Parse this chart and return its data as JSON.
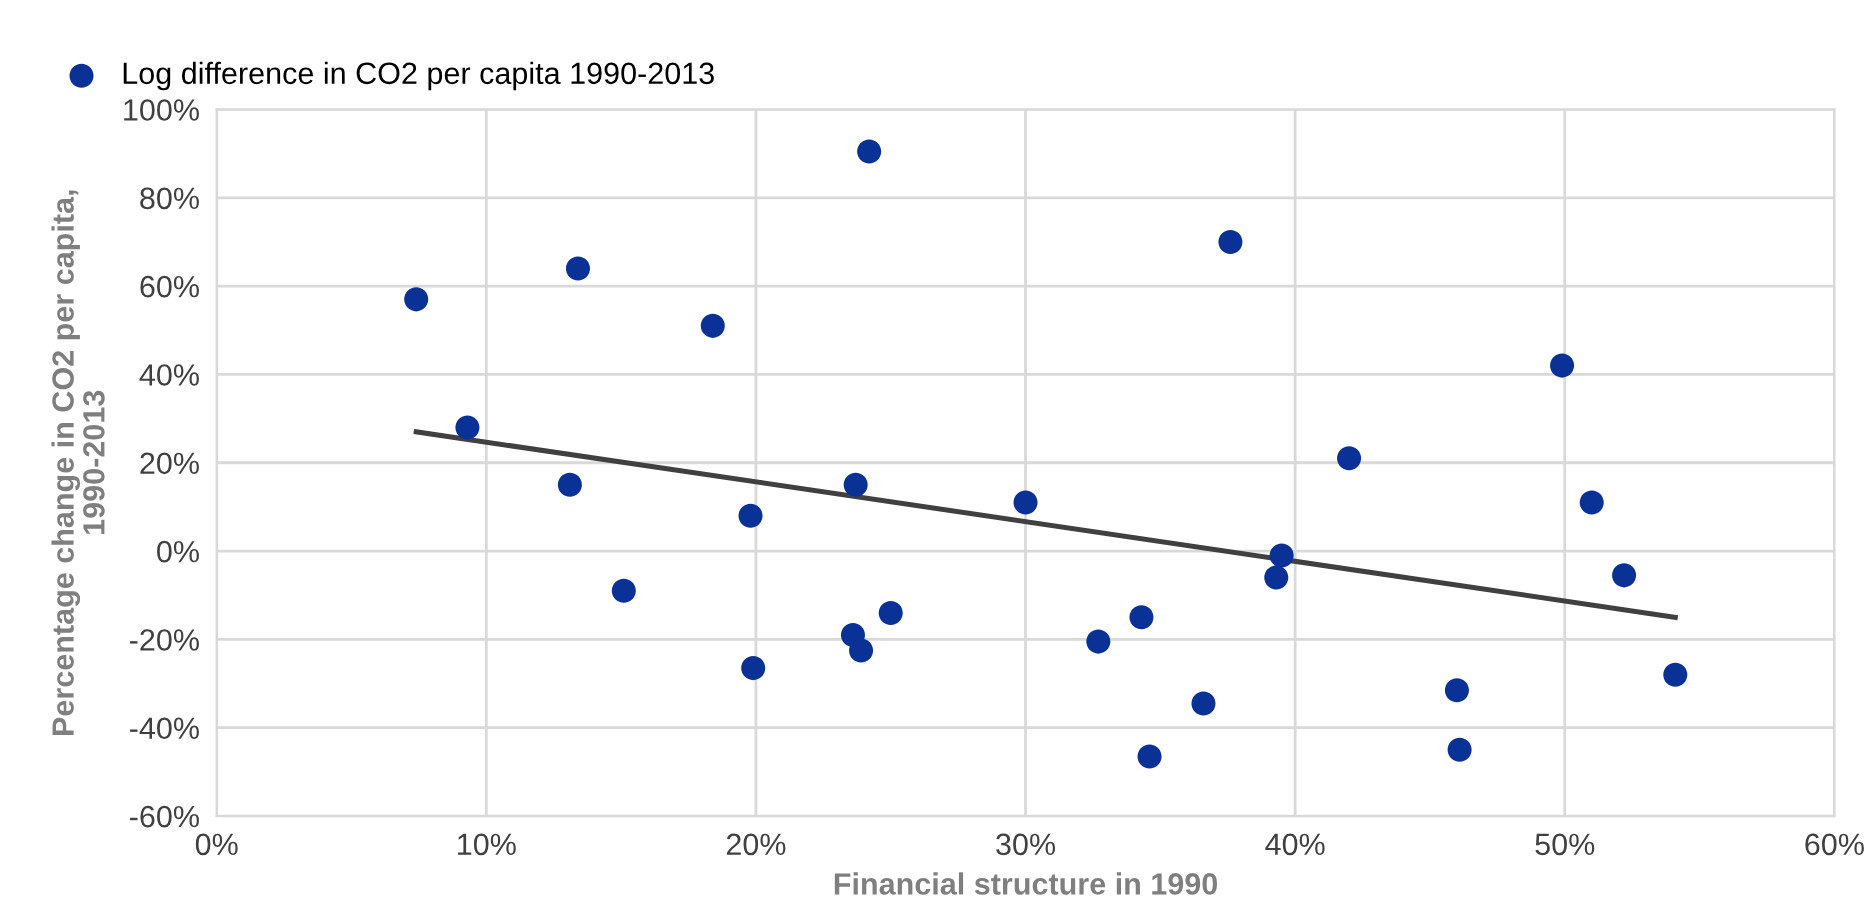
{
  "chart_data": {
    "type": "scatter",
    "xlabel": "Financial structure in 1990",
    "ylabel": "Percentage change in CO2 per capita,\n1990-2013",
    "xlim": [
      0,
      60
    ],
    "ylim": [
      -60,
      100
    ],
    "xticks": [
      {
        "value": 0,
        "label": "0%"
      },
      {
        "value": 10,
        "label": "10%"
      },
      {
        "value": 20,
        "label": "20%"
      },
      {
        "value": 30,
        "label": "30%"
      },
      {
        "value": 40,
        "label": "40%"
      },
      {
        "value": 50,
        "label": "50%"
      },
      {
        "value": 60,
        "label": "60%"
      }
    ],
    "yticks": [
      {
        "value": -60,
        "label": "-60%"
      },
      {
        "value": -40,
        "label": "-40%"
      },
      {
        "value": -20,
        "label": "-20%"
      },
      {
        "value": 0,
        "label": "0%"
      },
      {
        "value": 20,
        "label": "20%"
      },
      {
        "value": 40,
        "label": "40%"
      },
      {
        "value": 60,
        "label": "60%"
      },
      {
        "value": 80,
        "label": "80%"
      },
      {
        "value": 100,
        "label": "100%"
      }
    ],
    "grid": true,
    "legend": "top left",
    "series": [
      {
        "name": "Log difference in CO2 per capita 1990-2013",
        "marker": "circle",
        "color": "#0a3296",
        "x": [
          7.4,
          9.3,
          13.1,
          13.4,
          15.1,
          18.4,
          19.8,
          19.9,
          23.6,
          23.7,
          23.9,
          24.2,
          25.0,
          30.0,
          32.7,
          34.3,
          34.6,
          36.6,
          37.6,
          39.5,
          39.3,
          42.0,
          46.0,
          46.1,
          49.9,
          51.0,
          52.2,
          54.1
        ],
        "values": [
          57,
          28,
          15,
          64,
          -9,
          51,
          8,
          -26.5,
          -19,
          15,
          -22.5,
          90.5,
          -14,
          11,
          -20.5,
          -15,
          -46.5,
          -34.5,
          70,
          -1,
          -6,
          21,
          -31.5,
          -45,
          42,
          11,
          -5.5,
          -28
        ]
      },
      {
        "type": "line",
        "color": "#404040",
        "line_style": "solid",
        "x": [
          7.4,
          54.1
        ],
        "values": [
          27,
          -15
        ]
      }
    ]
  }
}
